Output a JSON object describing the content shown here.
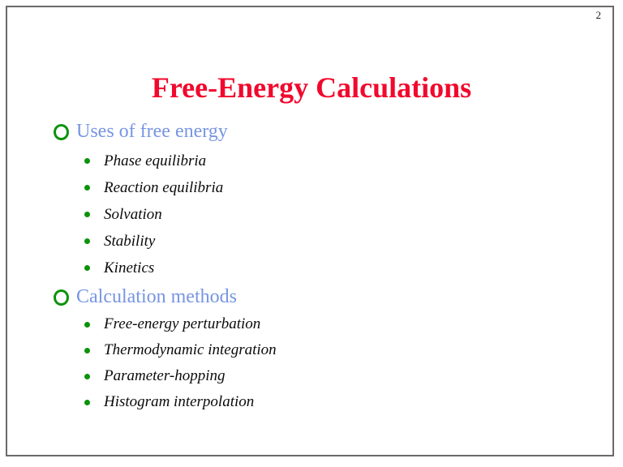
{
  "page_number": "2",
  "title": "Free-Energy Calculations",
  "sections": [
    {
      "heading": "Uses of free energy",
      "items": [
        "Phase equilibria",
        "Reaction equilibria",
        "Solvation",
        "Stability",
        "Kinetics"
      ]
    },
    {
      "heading": "Calculation methods",
      "items": [
        "Free-energy perturbation",
        "Thermodynamic integration",
        "Parameter-hopping",
        "Histogram interpolation"
      ]
    }
  ],
  "colors": {
    "title_red": "#f1092d",
    "heading_blue": "#7795e2",
    "bullet_green": "#0a930a",
    "body_text": "#0b0b0b",
    "border_gray": "#6a6a6a"
  }
}
